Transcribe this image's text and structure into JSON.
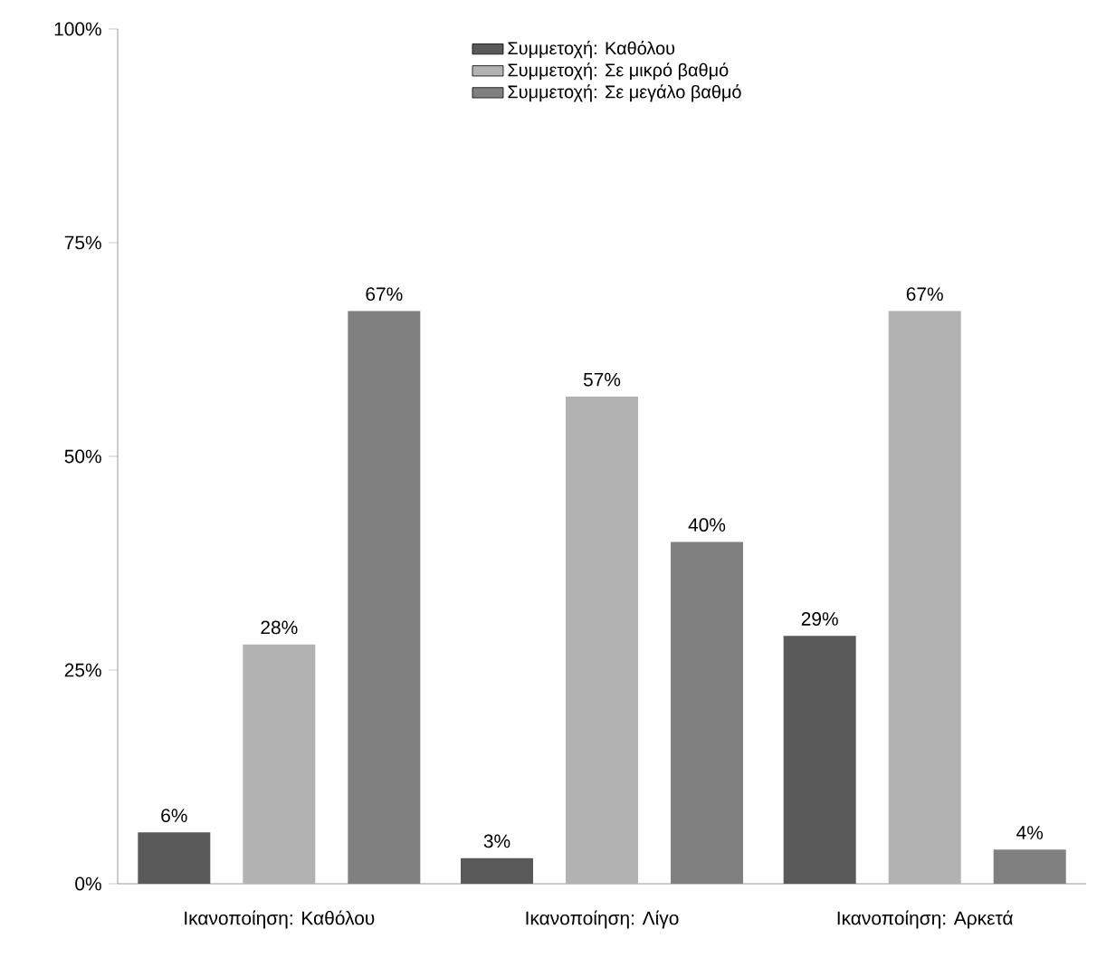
{
  "chart_data": {
    "type": "bar",
    "categories": [
      "Ικανοποίηση: Καθόλου",
      "Ικανοποίηση: Λίγο",
      "Ικανοποίηση: Αρκετά"
    ],
    "series": [
      {
        "name": "Συμμετοχή: Καθόλου",
        "color": "#595959",
        "values": [
          6,
          3,
          29
        ],
        "value_labels": [
          "6%",
          "3%",
          "29%"
        ]
      },
      {
        "name": "Συμμετοχή: Σε μικρό βαθμό",
        "color": "#b2b2b2",
        "values": [
          28,
          57,
          67
        ],
        "value_labels": [
          "28%",
          "57%",
          "67%"
        ]
      },
      {
        "name": "Συμμετοχή: Σε μεγάλο βαθμό",
        "color": "#808080",
        "values": [
          67,
          40,
          4
        ],
        "value_labels": [
          "67%",
          "40%",
          "4%"
        ]
      }
    ],
    "ylim": [
      0,
      100
    ],
    "yticks": [
      {
        "value": 0,
        "label": "0%"
      },
      {
        "value": 25,
        "label": "25%"
      },
      {
        "value": 50,
        "label": "50%"
      },
      {
        "value": 75,
        "label": "75%"
      },
      {
        "value": 100,
        "label": "100%"
      }
    ],
    "grid": false,
    "legend": "top"
  }
}
